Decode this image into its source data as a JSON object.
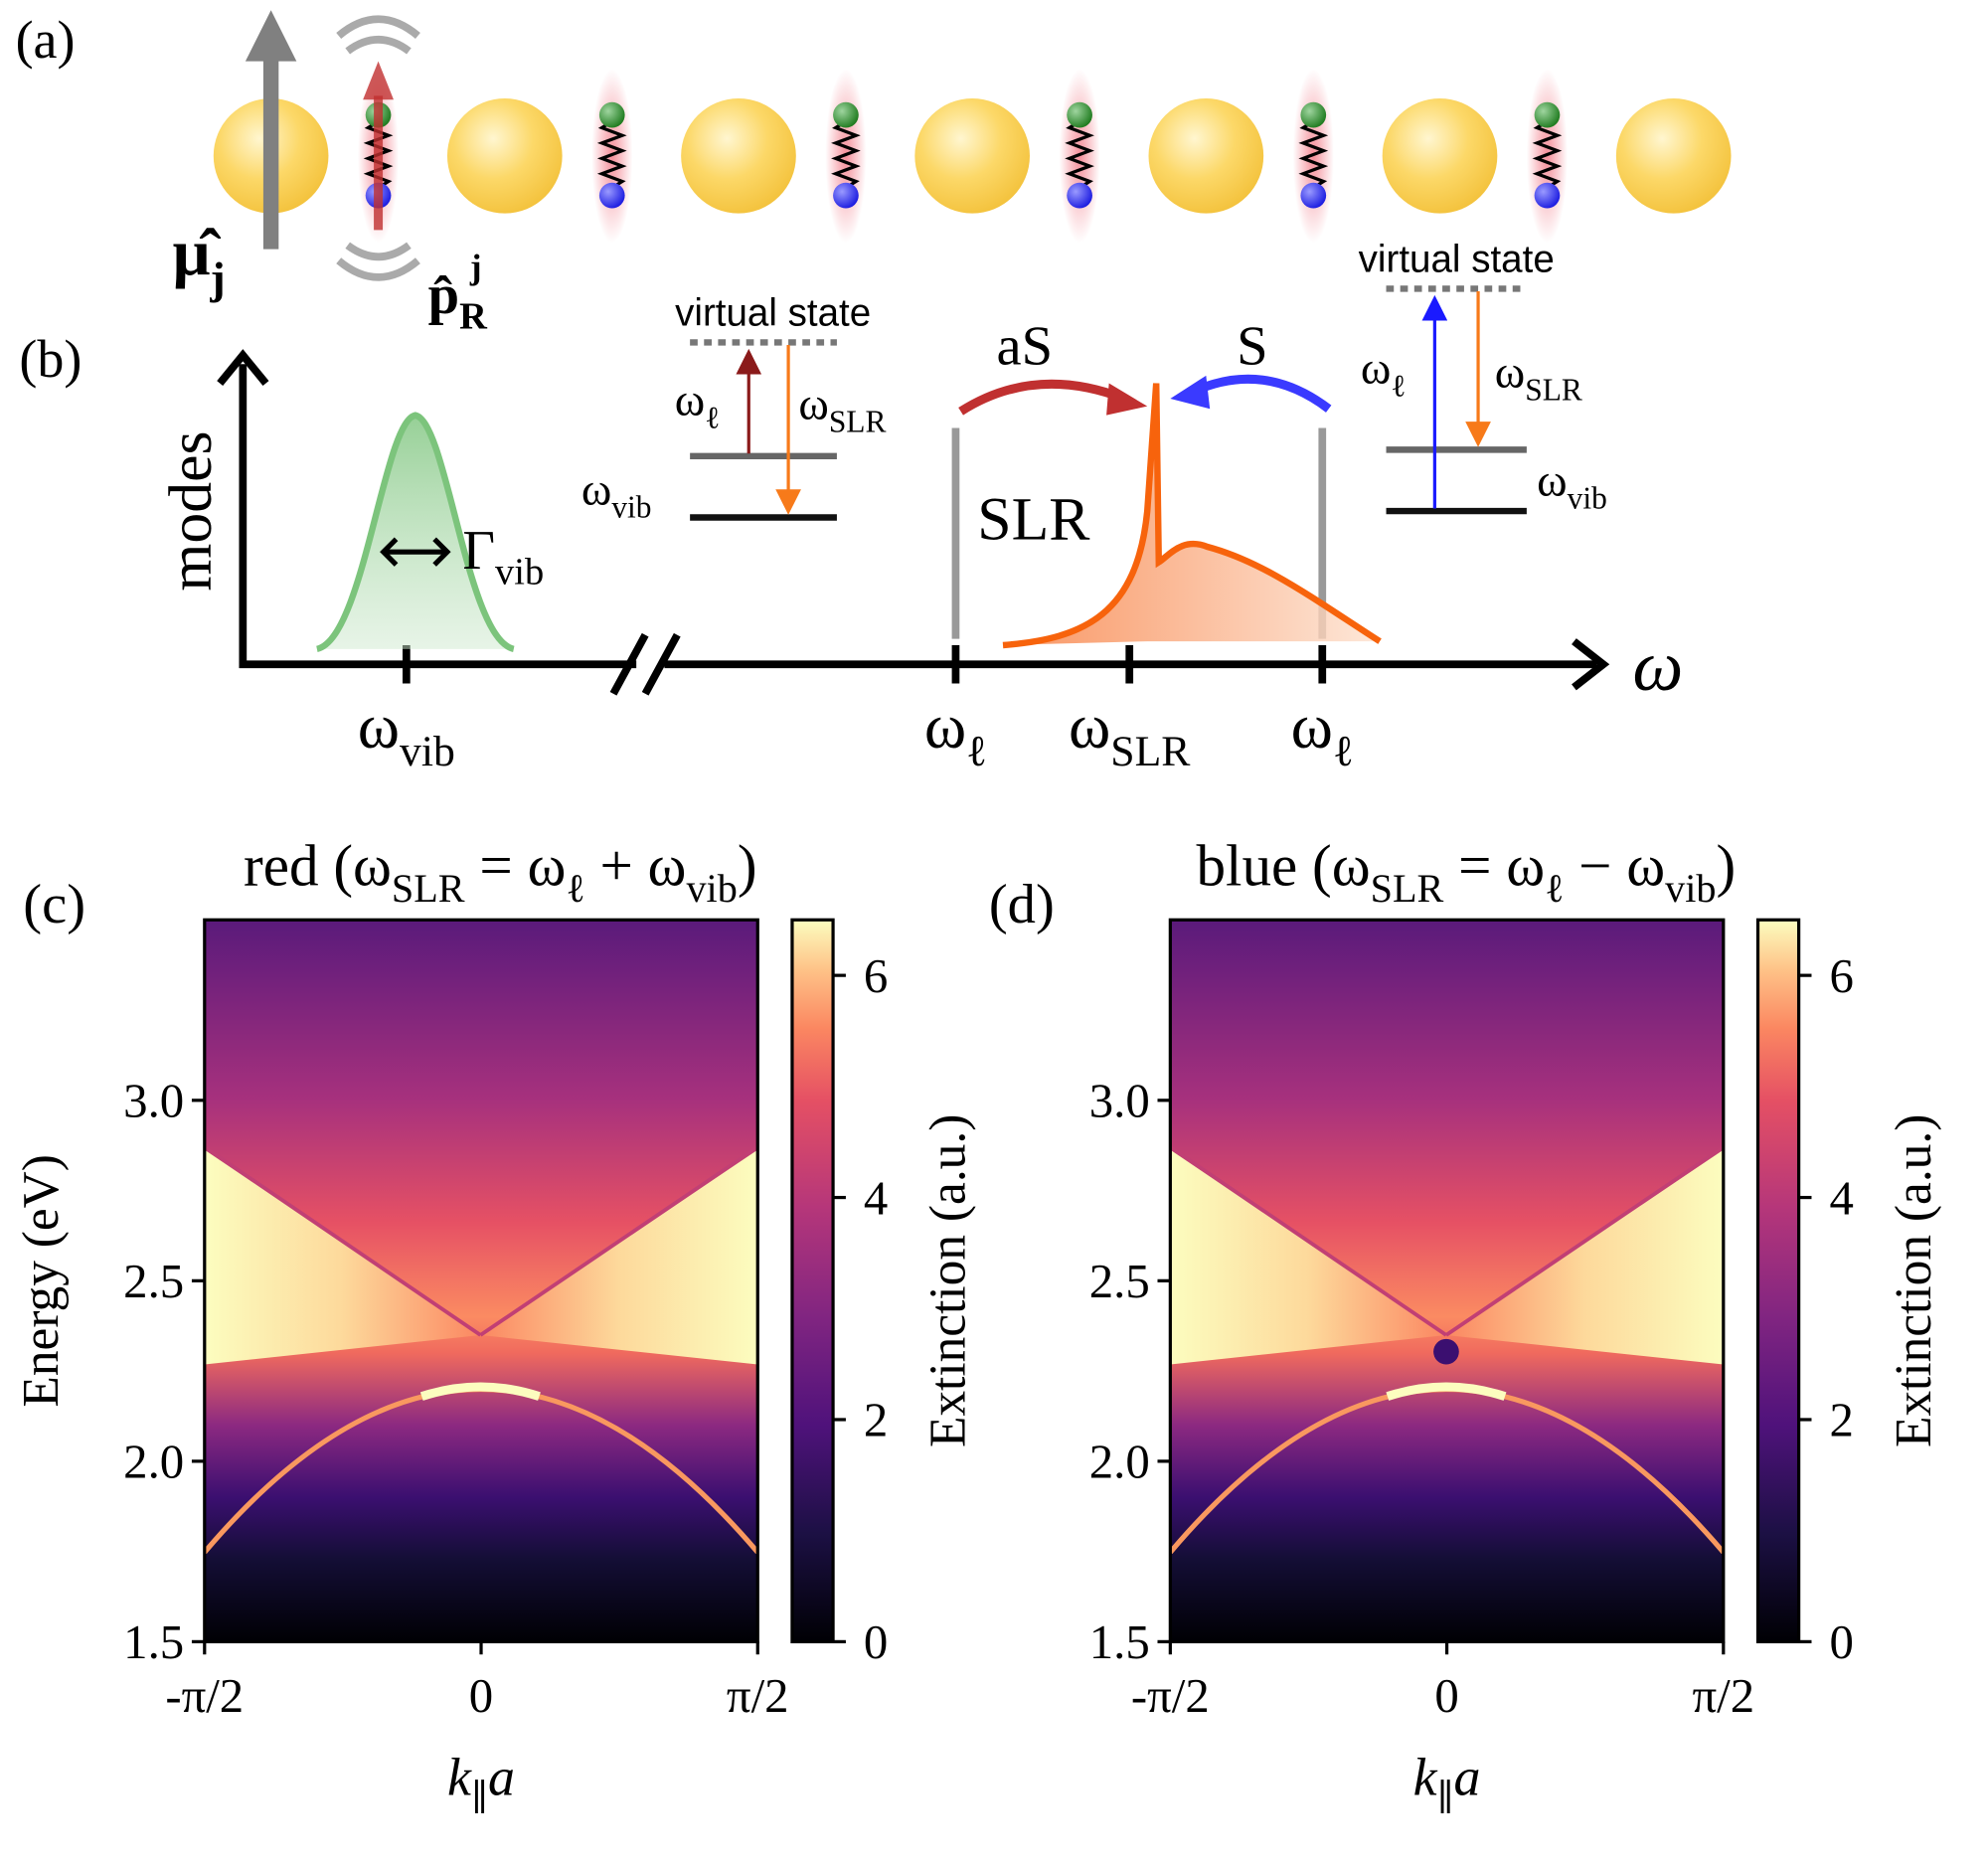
{
  "panel_a": {
    "label": [
      {
        "text": "(a)"
      }
    ],
    "dipole_label": [
      {
        "text": "μ̂",
        "sub": "j"
      }
    ],
    "raman_label": [
      {
        "text": "p̂",
        "sub": "R",
        "sup": "j"
      }
    ]
  },
  "panel_b": {
    "label": [
      {
        "text": "(b)"
      }
    ],
    "y_axis_label": [
      {
        "text": "modes"
      }
    ],
    "x_axis_label": [
      {
        "text": "ω"
      }
    ],
    "x_ticks": [
      [
        {
          "text": "ω",
          "sub": "vib"
        }
      ],
      [
        {
          "text": "ω",
          "sub": "ℓ"
        }
      ],
      [
        {
          "text": "ω",
          "sub": "SLR"
        }
      ],
      [
        {
          "text": "ω",
          "sub": "ℓ"
        }
      ]
    ],
    "linewidth_label": [
      {
        "text": "Γ",
        "sub": "vib"
      }
    ],
    "slr_label": [
      {
        "text": "SLR"
      }
    ],
    "anti_stokes_label": [
      {
        "text": "aS"
      }
    ],
    "stokes_label": [
      {
        "text": "S"
      }
    ],
    "left_diagram": {
      "title": "virtual state",
      "pump": [
        {
          "text": "ω",
          "sub": "ℓ"
        }
      ],
      "emission": [
        {
          "text": "ω",
          "sub": "SLR"
        }
      ],
      "vibration": [
        {
          "text": "ω",
          "sub": "vib"
        }
      ]
    },
    "right_diagram": {
      "title": "virtual state",
      "pump": [
        {
          "text": "ω",
          "sub": "ℓ"
        }
      ],
      "emission": [
        {
          "text": "ω",
          "sub": "SLR"
        }
      ],
      "vibration": [
        {
          "text": "ω",
          "sub": "vib"
        }
      ]
    }
  },
  "heatmaps": [
    {
      "label": [
        {
          "text": "(c)"
        }
      ],
      "title": [
        {
          "text": "red ("
        },
        {
          "text": "ω",
          "sub": "SLR"
        },
        {
          "text": " = "
        },
        {
          "text": "ω",
          "sub": "ℓ"
        },
        {
          "text": " + "
        },
        {
          "text": "ω",
          "sub": "vib"
        },
        {
          "text": ")"
        }
      ],
      "ylabel": [
        {
          "text": "Energy (eV)"
        }
      ],
      "xlabel": [
        {
          "text": "k",
          "sub": "∥"
        },
        {
          "text": "a"
        }
      ],
      "ylim": [
        1.5,
        3.5
      ],
      "yticks": [
        1.5,
        {
          "value": 2,
          "label": "2.0"
        },
        2.5,
        {
          "value": 3,
          "label": "3.0"
        }
      ],
      "xlim": [
        -1.5708,
        1.5708
      ],
      "xticks": [
        {
          "value": -1.5708,
          "label": "-π/2"
        },
        0,
        {
          "value": 1.5708,
          "label": "π/2"
        }
      ],
      "colorbar": {
        "label": "Extinction (a.u.)",
        "lim": [
          0,
          6.5
        ],
        "ticks": [
          0,
          2,
          4,
          6
        ]
      }
    },
    {
      "label": [
        {
          "text": "(d)"
        }
      ],
      "title": [
        {
          "text": "blue ("
        },
        {
          "text": "ω",
          "sub": "SLR"
        },
        {
          "text": " = "
        },
        {
          "text": "ω",
          "sub": "ℓ"
        },
        {
          "text": " − "
        },
        {
          "text": "ω",
          "sub": "vib"
        },
        {
          "text": ")"
        }
      ],
      "ylabel": [],
      "xlabel": [
        {
          "text": "k",
          "sub": "∥"
        },
        {
          "text": "a"
        }
      ],
      "ylim": [
        1.5,
        3.5
      ],
      "yticks": [
        1.5,
        {
          "value": 2,
          "label": "2.0"
        },
        2.5,
        {
          "value": 3,
          "label": "3.0"
        }
      ],
      "xlim": [
        -1.5708,
        1.5708
      ],
      "xticks": [
        {
          "value": -1.5708,
          "label": "-π/2"
        },
        0,
        {
          "value": 1.5708,
          "label": "π/2"
        }
      ],
      "colorbar": {
        "label": "Extinction (a.u.)",
        "lim": [
          0,
          6.5
        ],
        "ticks": [
          0,
          2,
          4,
          6
        ]
      }
    }
  ]
}
